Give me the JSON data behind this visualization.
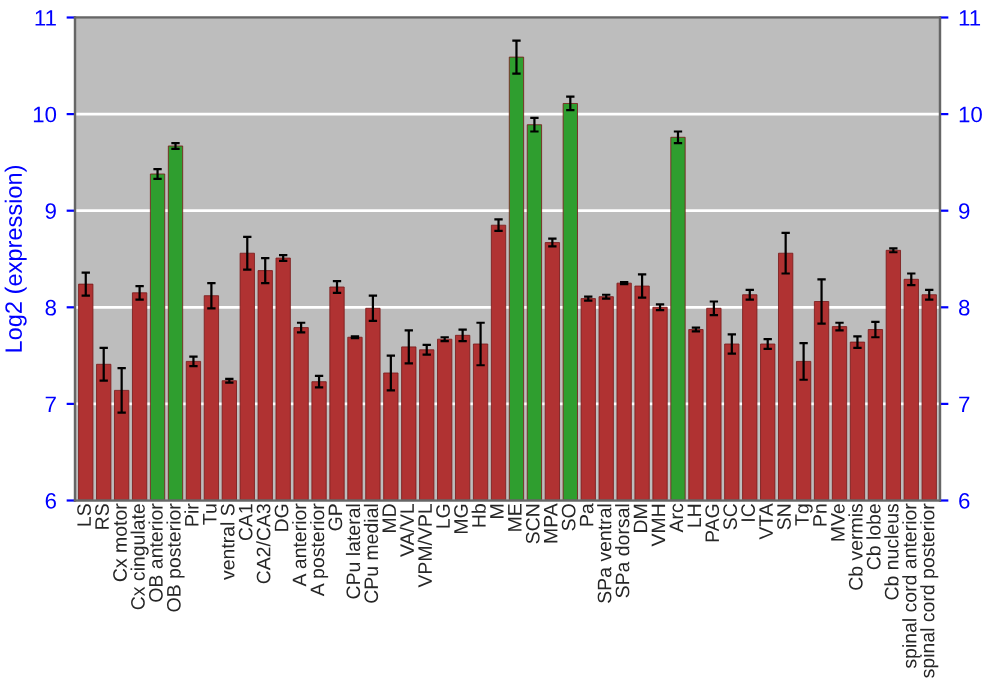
{
  "chart_data": {
    "type": "bar",
    "ylabel": "Log2 (expression)",
    "categories": [
      "LS",
      "RS",
      "Cx motor",
      "Cx cingulate",
      "OB anterior",
      "OB posterior",
      "Pir",
      "Tu",
      "ventral S",
      "CA1",
      "CA2/CA3",
      "DG",
      "A anterior",
      "A posterior",
      "GP",
      "CPu lateral",
      "CPu medial",
      "MD",
      "VA/VL",
      "VPM/VPL",
      "LG",
      "MG",
      "Hb",
      "M",
      "ME",
      "SCN",
      "MPA",
      "SO",
      "Pa",
      "SPa ventral",
      "SPa dorsal",
      "DM",
      "VMH",
      "Arc",
      "LH",
      "PAG",
      "SC",
      "IC",
      "VTA",
      "SN",
      "Tg",
      "Pn",
      "MVe",
      "Cb vermis",
      "Cb lobe",
      "Cb nucleus",
      "spinal cord anterior",
      "spinal cord posterior"
    ],
    "values": [
      8.24,
      7.41,
      7.14,
      8.15,
      9.38,
      9.67,
      7.44,
      8.12,
      7.24,
      8.56,
      8.38,
      8.51,
      7.79,
      7.23,
      8.21,
      7.69,
      7.99,
      7.32,
      7.59,
      7.56,
      7.67,
      7.71,
      7.62,
      8.85,
      10.59,
      9.89,
      8.67,
      10.11,
      8.09,
      8.11,
      8.25,
      8.22,
      8.0,
      9.76,
      7.77,
      7.99,
      7.62,
      8.13,
      7.62,
      8.56,
      7.44,
      8.06,
      7.8,
      7.64,
      7.77,
      8.59,
      8.29,
      8.13
    ],
    "errors": [
      0.12,
      0.17,
      0.23,
      0.07,
      0.05,
      0.03,
      0.05,
      0.13,
      0.02,
      0.17,
      0.13,
      0.03,
      0.05,
      0.06,
      0.06,
      0.01,
      0.13,
      0.18,
      0.17,
      0.05,
      0.02,
      0.06,
      0.22,
      0.06,
      0.17,
      0.07,
      0.04,
      0.07,
      0.02,
      0.02,
      0.01,
      0.12,
      0.03,
      0.06,
      0.02,
      0.07,
      0.1,
      0.05,
      0.05,
      0.21,
      0.19,
      0.23,
      0.04,
      0.06,
      0.08,
      0.02,
      0.06,
      0.05
    ],
    "colors": [
      "#b03232",
      "#b03232",
      "#b03232",
      "#b03232",
      "#2f9e2f",
      "#2f9e2f",
      "#b03232",
      "#b03232",
      "#b03232",
      "#b03232",
      "#b03232",
      "#b03232",
      "#b03232",
      "#b03232",
      "#b03232",
      "#b03232",
      "#b03232",
      "#b03232",
      "#b03232",
      "#b03232",
      "#b03232",
      "#b03232",
      "#b03232",
      "#b03232",
      "#2f9e2f",
      "#2f9e2f",
      "#b03232",
      "#2f9e2f",
      "#b03232",
      "#b03232",
      "#b03232",
      "#b03232",
      "#b03232",
      "#2f9e2f",
      "#b03232",
      "#b03232",
      "#b03232",
      "#b03232",
      "#b03232",
      "#b03232",
      "#b03232",
      "#b03232",
      "#b03232",
      "#b03232",
      "#b03232",
      "#b03232",
      "#b03232",
      "#b03232"
    ],
    "ylim": [
      6,
      11
    ],
    "yticks": [
      6,
      7,
      8,
      9,
      10,
      11
    ],
    "y2lim": [
      6,
      11
    ],
    "y2ticks": [
      6,
      7,
      8,
      9,
      10,
      11
    ],
    "grid": "y"
  }
}
